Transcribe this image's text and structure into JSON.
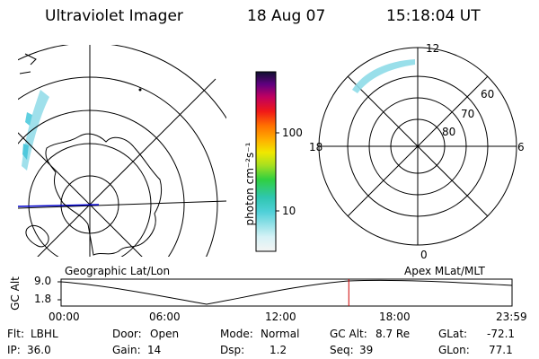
{
  "header": {
    "instrument": "Ultraviolet Imager",
    "date": "18 Aug 07",
    "time": "15:18:04 UT"
  },
  "colorbar": {
    "unit_label": "photon cm⁻²s⁻¹",
    "ticks": [
      "100",
      "10"
    ]
  },
  "polar_plot": {
    "labels": {
      "top": "12",
      "left": "18",
      "right": "6",
      "bottom": "0"
    },
    "lat_rings": [
      "60",
      "70",
      "80"
    ]
  },
  "map_captions": {
    "geographic": "Geographic Lat/Lon",
    "apex": "Apex MLat/MLT"
  },
  "timeline": {
    "ylabel": "GC Alt",
    "y_ticks": [
      "9.0",
      "1.8"
    ],
    "x_ticks": [
      "00:00",
      "06:00",
      "12:00",
      "18:00",
      "23:59"
    ],
    "current_time_fraction": 0.638,
    "marker_color": "#cc0000"
  },
  "footer": {
    "flt_label": "Flt:",
    "flt_value": "LBHL",
    "ip_label": "IP:",
    "ip_value": "36.0",
    "door_label": "Door:",
    "door_value": "Open",
    "gain_label": "Gain:",
    "gain_value": "14",
    "mode_label": "Mode:",
    "mode_value": "Normal",
    "dsp_label": "Dsp:",
    "dsp_value": "1.2",
    "gcalt_label": "GC Alt:",
    "gcalt_value": "8.7 Re",
    "seq_label": "Seq:",
    "seq_value": "39",
    "glat_label": "GLat:",
    "glat_value": "-72.1",
    "glon_label": "GLon:",
    "glon_value": "77.1"
  },
  "colors": {
    "aurora": "#7fd8e6",
    "coastline": "#000000",
    "equator_line": "#0000cc"
  }
}
